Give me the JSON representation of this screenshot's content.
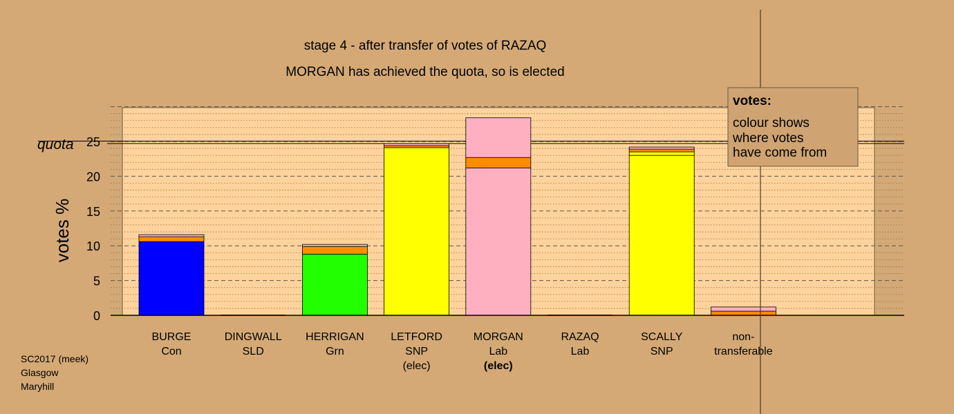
{
  "chart_data": {
    "type": "bar",
    "title": "stage 4 - after transfer of votes of RAZAQ",
    "subtitle": "MORGAN has achieved the quota, so is elected",
    "ylabel": "votes %",
    "ylim": [
      0,
      30
    ],
    "yticks": [
      0,
      5,
      10,
      15,
      20,
      25
    ],
    "quota": 24.9,
    "quota_label": "quota",
    "grid": true,
    "legend": {
      "title": "votes:",
      "lines": [
        "colour shows",
        "where votes",
        "have come from"
      ],
      "position": "top-right"
    },
    "colors": {
      "Con": "#0000ff",
      "Grn": "#22ff00",
      "SNP": "#ffff00",
      "Lab": "#ffb0c0",
      "SLD": "#ff8c00",
      "background": "#d4a976",
      "plot_area": "#ffd39b"
    },
    "categories": [
      {
        "name": "BURGE",
        "party": "Con",
        "note": "",
        "note_bold": false,
        "segments": [
          {
            "from": "Con",
            "value": 10.6
          },
          {
            "from": "SLD",
            "value": 0.7
          },
          {
            "from": "Lab",
            "value": 0.3
          }
        ]
      },
      {
        "name": "DINGWALL",
        "party": "SLD",
        "note": "",
        "note_bold": false,
        "segments": []
      },
      {
        "name": "HERRIGAN",
        "party": "Grn",
        "note": "",
        "note_bold": false,
        "segments": [
          {
            "from": "Grn",
            "value": 8.8
          },
          {
            "from": "SLD",
            "value": 1.1
          },
          {
            "from": "Lab",
            "value": 0.3
          }
        ]
      },
      {
        "name": "LETFORD",
        "party": "SNP",
        "note": "(elec)",
        "note_bold": false,
        "segments": [
          {
            "from": "SNP",
            "value": 24.1
          },
          {
            "from": "SLD",
            "value": 0.3
          },
          {
            "from": "Lab",
            "value": 0.3
          }
        ]
      },
      {
        "name": "MORGAN",
        "party": "Lab",
        "note": "(elec)",
        "note_bold": true,
        "segments": [
          {
            "from": "Lab",
            "value": 21.2
          },
          {
            "from": "SLD",
            "value": 1.5
          },
          {
            "from": "Lab",
            "value": 5.7
          }
        ]
      },
      {
        "name": "RAZAQ",
        "party": "Lab",
        "note": "",
        "note_bold": false,
        "segments": []
      },
      {
        "name": "SCALLY",
        "party": "SNP",
        "note": "",
        "note_bold": false,
        "segments": [
          {
            "from": "SNP",
            "value": 23.0
          },
          {
            "from": "SNP",
            "value": 0.5
          },
          {
            "from": "SLD",
            "value": 0.4
          },
          {
            "from": "Lab",
            "value": 0.3
          }
        ]
      },
      {
        "name": "non-",
        "party": "transferable",
        "note": "",
        "note_bold": false,
        "segments": [
          {
            "from": "SLD",
            "value": 0.6
          },
          {
            "from": "Lab",
            "value": 0.6
          }
        ]
      }
    ],
    "source": [
      "SC2017 (meek)",
      "Glasgow",
      "Maryhill"
    ]
  }
}
